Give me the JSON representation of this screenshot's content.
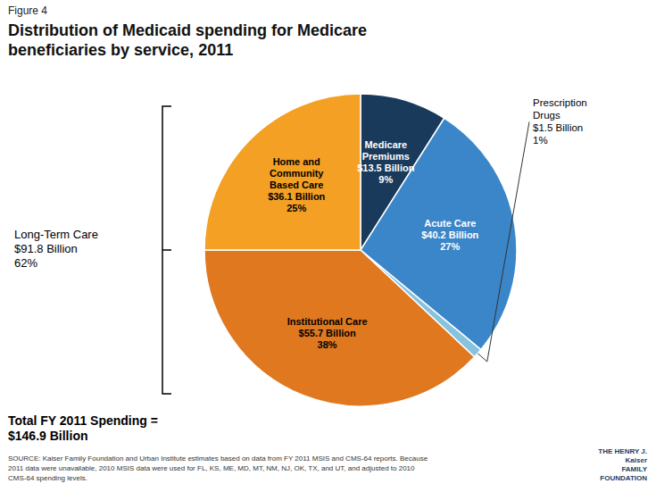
{
  "chart_data": {
    "type": "pie",
    "subtitle": "Figure 4",
    "title": "Distribution of Medicaid spending for Medicare\nbeneficiaries by service, 2011",
    "categories": [
      "Medicare\nPremiums",
      "Acute Care",
      "Prescription\nDrugs",
      "Institutional Care",
      "Home and\nCommunity\nBased Care"
    ],
    "values": [
      9,
      27,
      1,
      38,
      25
    ],
    "value_labels": [
      "9%",
      "27%",
      "1%",
      "38%",
      "25%"
    ],
    "billions": [
      13.5,
      40.2,
      1.5,
      55.7,
      36.1
    ],
    "billion_labels": [
      "$13.5 Billion",
      "$40.2 Billion",
      "$1.5 Billion",
      "$55.7 Billion",
      "$36.1 Billion"
    ],
    "colors": [
      "#1a3a5c",
      "#3a86c8",
      "#87c3de",
      "#e07820",
      "#f4a024"
    ],
    "data_labels": true,
    "annotations": [
      "Long-Term Care\n$91.8 Billion\n62%",
      "Total FY 2011 Spending =\n$146.9 Billion",
      "SOURCE: Kaiser Family Foundation and Urban Institute estimates based on data from FY 2011 MSIS and CMS-64 reports. Because\n2011 data were unavailable, 2010 MSIS data were used for FL, KS, ME, MD, MT, NM, NJ, OK, TX, and UT, and adjusted to 2010\nCMS-64 spending levels.",
      "THE HENRY J.\nKaiser\nFAMILY\nFOUNDATION"
    ]
  }
}
